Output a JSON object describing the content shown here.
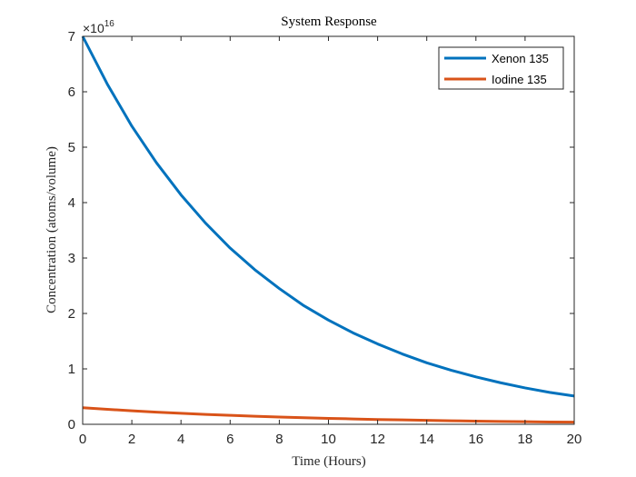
{
  "chart_data": {
    "type": "line",
    "title": "System Response",
    "xlabel": "Time (Hours)",
    "ylabel": "Concentration (atoms/volume)",
    "y_exponent_label": "×10",
    "y_exponent_power": "16",
    "xlim": [
      0,
      20
    ],
    "ylim": [
      0,
      7
    ],
    "x_ticks": [
      0,
      2,
      4,
      6,
      8,
      10,
      12,
      14,
      16,
      18,
      20
    ],
    "y_ticks": [
      0,
      1,
      2,
      3,
      4,
      5,
      6,
      7
    ],
    "x_tick_labels": [
      "0",
      "2",
      "4",
      "6",
      "8",
      "10",
      "12",
      "14",
      "16",
      "18",
      "20"
    ],
    "y_tick_labels": [
      "0",
      "1",
      "2",
      "3",
      "4",
      "5",
      "6",
      "7"
    ],
    "grid": false,
    "legend_position": "top-right",
    "x": [
      0,
      1,
      2,
      3,
      4,
      5,
      6,
      7,
      8,
      9,
      10,
      11,
      12,
      13,
      14,
      15,
      16,
      17,
      18,
      19,
      20
    ],
    "series": [
      {
        "name": "Xenon 135",
        "color": "#0072bd",
        "values": [
          7.0,
          6.14,
          5.38,
          4.72,
          4.14,
          3.63,
          3.18,
          2.79,
          2.45,
          2.14,
          1.88,
          1.65,
          1.45,
          1.27,
          1.11,
          0.975,
          0.855,
          0.75,
          0.657,
          0.576,
          0.51
        ]
      },
      {
        "name": "Iodine 135",
        "color": "#d95319",
        "values": [
          0.3,
          0.271,
          0.244,
          0.22,
          0.199,
          0.179,
          0.162,
          0.146,
          0.132,
          0.119,
          0.107,
          0.097,
          0.087,
          0.079,
          0.071,
          0.064,
          0.058,
          0.052,
          0.047,
          0.042,
          0.038
        ]
      }
    ]
  }
}
